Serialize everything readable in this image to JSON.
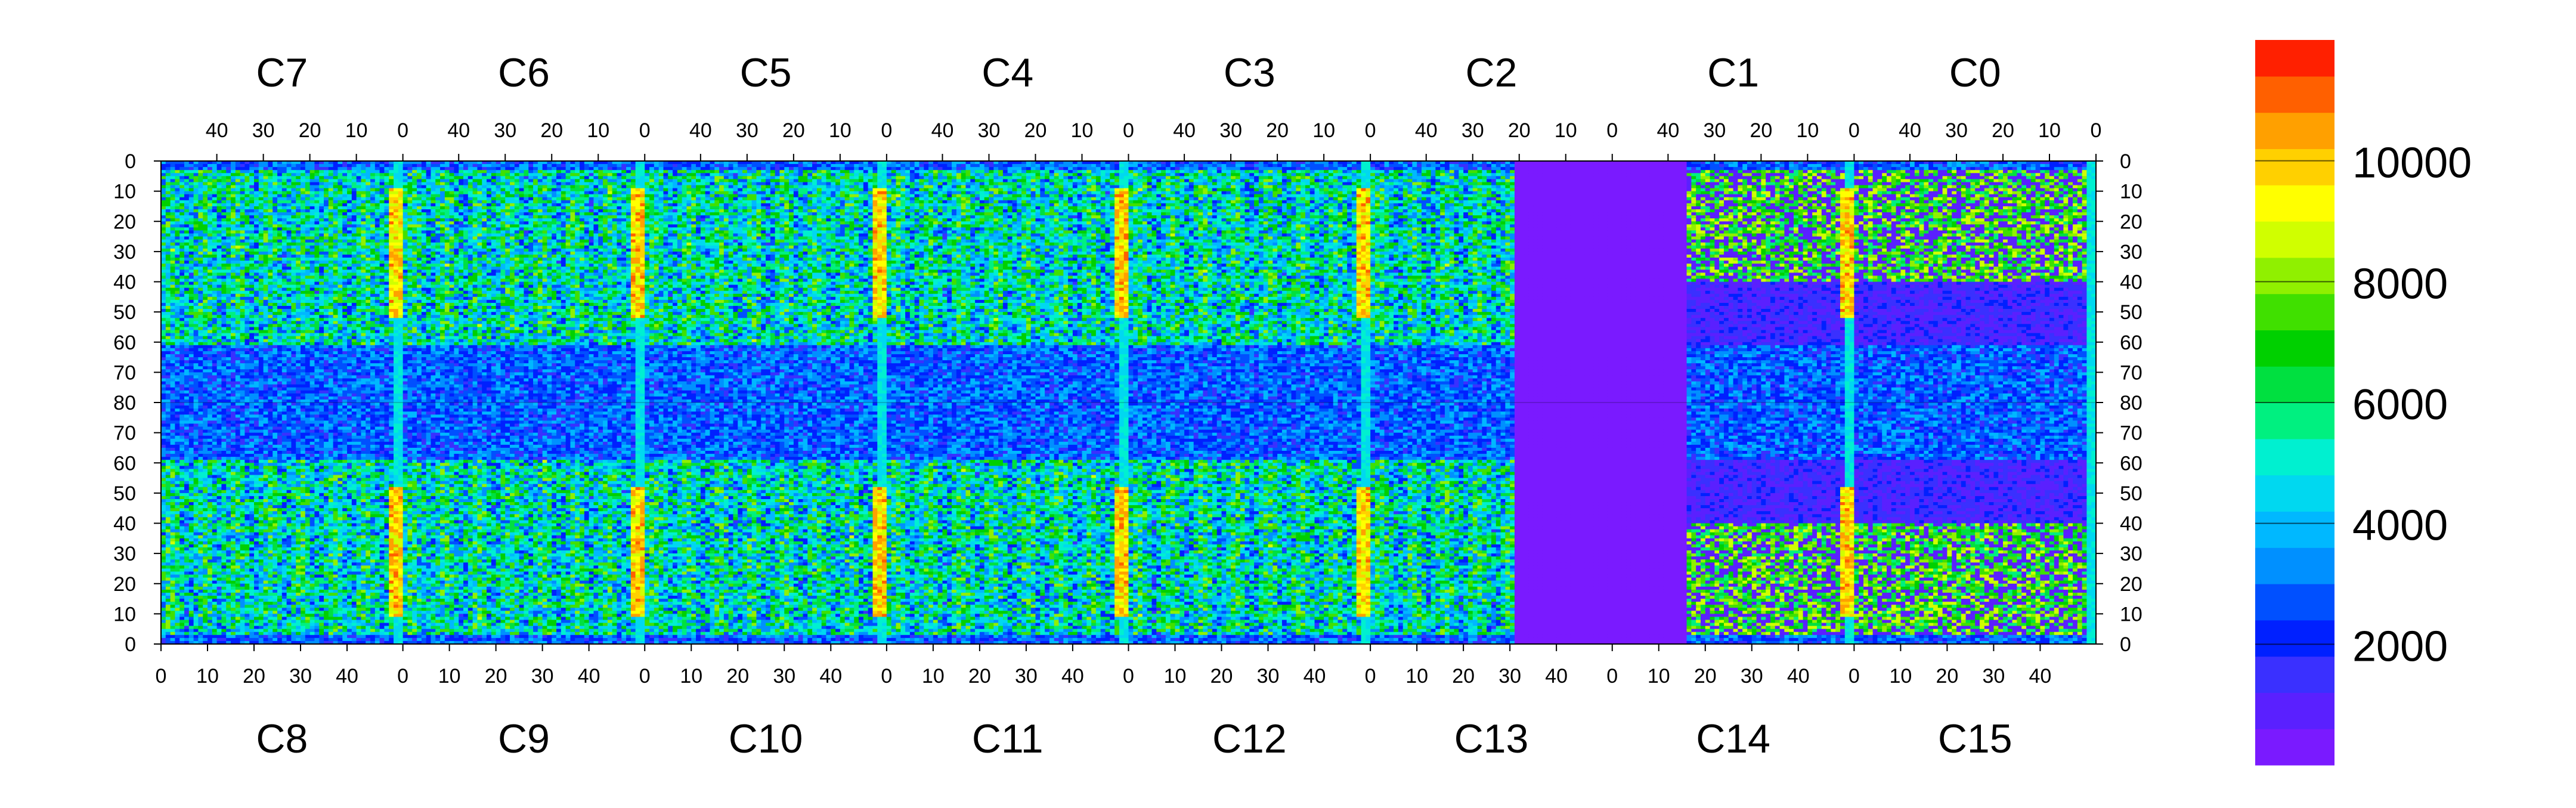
{
  "chart_data": {
    "type": "heatmap",
    "title": "",
    "xlabel": "",
    "ylabel": "",
    "top_chip_labels": [
      "C7",
      "C6",
      "C5",
      "C4",
      "C3",
      "C2",
      "C1",
      "C0"
    ],
    "bottom_chip_labels": [
      "C8",
      "C9",
      "C10",
      "C11",
      "C12",
      "C13",
      "C14",
      "C15"
    ],
    "top_x_ticks": [
      "40",
      "30",
      "20",
      "10",
      "0"
    ],
    "bottom_x_ticks": [
      "0",
      "10",
      "20",
      "30",
      "40"
    ],
    "top_half_y_ticks": [
      "0",
      "10",
      "20",
      "30",
      "40",
      "50",
      "60",
      "70",
      "80"
    ],
    "bottom_half_y_ticks": [
      "70",
      "60",
      "50",
      "40",
      "30",
      "20",
      "10",
      "0"
    ],
    "chip_width_columns": 52,
    "rows_per_half": 80,
    "colorbar": {
      "min": 0,
      "max": 12000,
      "ticks": [
        "2000",
        "4000",
        "6000",
        "8000",
        "10000"
      ],
      "tick_values": [
        2000,
        4000,
        6000,
        8000,
        10000
      ],
      "colors": [
        "#7a1aff",
        "#5a20ff",
        "#3a30ff",
        "#0020ff",
        "#0050ff",
        "#0090ff",
        "#00b8ff",
        "#00d8f0",
        "#00f0d0",
        "#00f080",
        "#00e040",
        "#00d000",
        "#40e000",
        "#90f000",
        "#d0ff00",
        "#ffff00",
        "#ffd000",
        "#ffa000",
        "#ff6000",
        "#ff2000"
      ]
    },
    "regions": {
      "background_level": 4500,
      "dead_chip_level": 200,
      "hot_column_level": 11000,
      "periphery_level": 1500
    }
  }
}
